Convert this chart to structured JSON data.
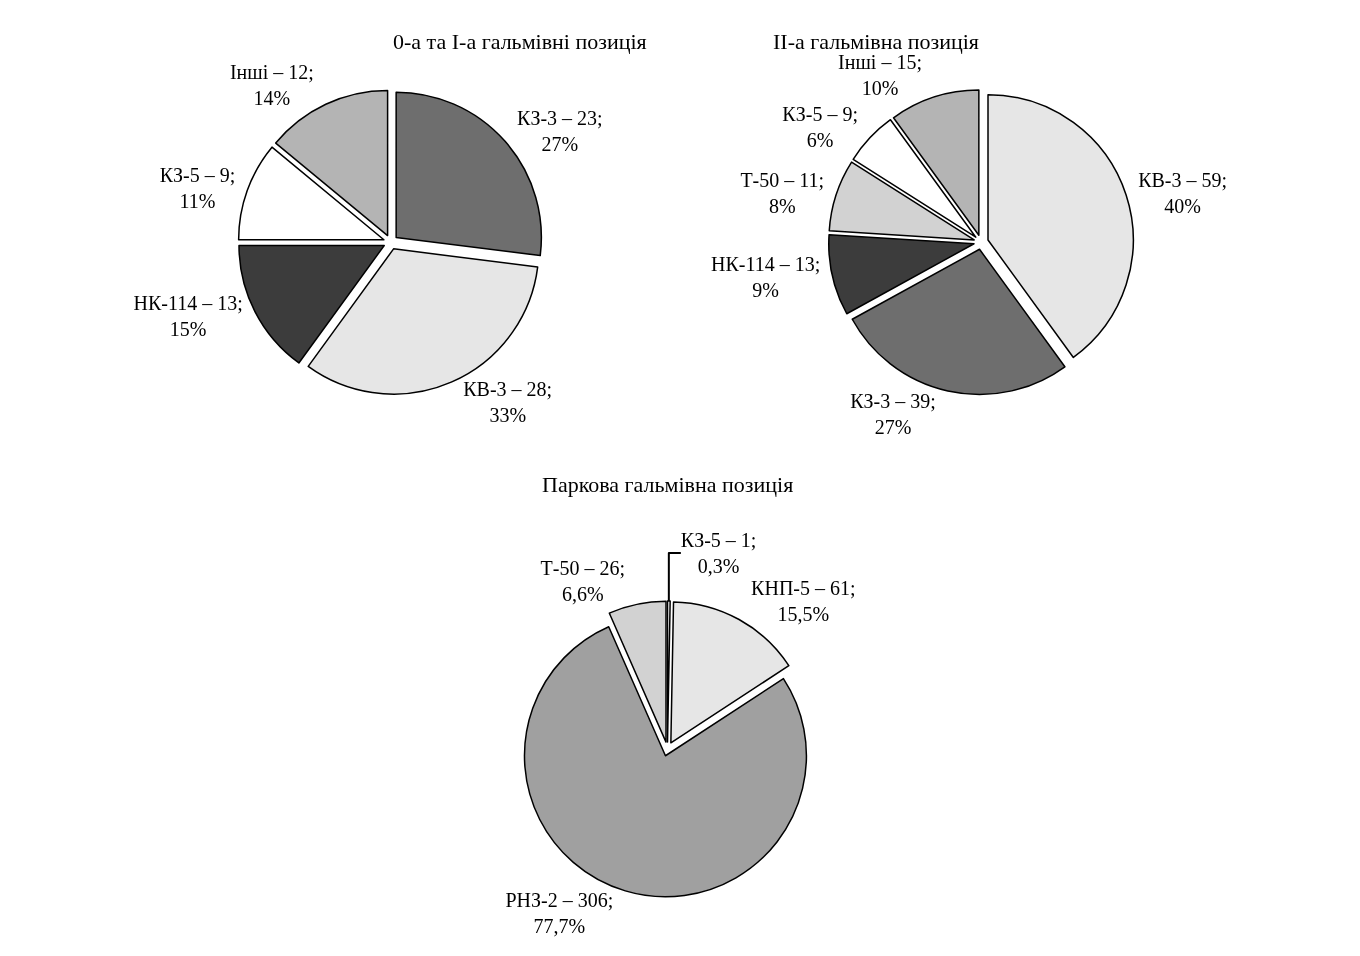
{
  "chart_data": [
    {
      "type": "pie",
      "title": "0-а та І-а гальмівні позиція",
      "categories": [
        "КЗ-3",
        "КВ-3",
        "НК-114",
        "КЗ-5",
        "Інші"
      ],
      "values": [
        27,
        33,
        15,
        11,
        14
      ],
      "value_labels": [
        "23; 27%",
        "28; 33%",
        "13; 15%",
        "9; 11%",
        "12; 14%"
      ],
      "colors": [
        "#6e6e6e",
        "#e6e6e6",
        "#3c3c3c",
        "#ffffff",
        "#b4b4b4"
      ]
    },
    {
      "type": "pie",
      "title": "ІІ-а гальмівна позиція",
      "categories": [
        "КВ-3",
        "КЗ-3",
        "НК-114",
        "Т-50",
        "КЗ-5",
        "Інші"
      ],
      "values": [
        40,
        27,
        9,
        8,
        6,
        10
      ],
      "value_labels": [
        "59; 40%",
        "39; 27%",
        "13; 9%",
        "11; 8%",
        "9; 6%",
        "15; 10%"
      ],
      "colors": [
        "#e6e6e6",
        "#6e6e6e",
        "#3c3c3c",
        "#d2d2d2",
        "#ffffff",
        "#b4b4b4"
      ]
    },
    {
      "type": "pie",
      "title": "Паркова гальмівна позиція",
      "categories": [
        "КЗ-5",
        "КНП-5",
        "РНЗ-2",
        "Т-50"
      ],
      "values": [
        0.3,
        15.5,
        77.7,
        6.6
      ],
      "value_labels": [
        "1; 0,3%",
        "61; 15,5%",
        "306; 77,7%",
        "26; 6,6%"
      ],
      "colors": [
        "#ffffff",
        "#e6e6e6",
        "#a0a0a0",
        "#d2d2d2"
      ]
    }
  ]
}
